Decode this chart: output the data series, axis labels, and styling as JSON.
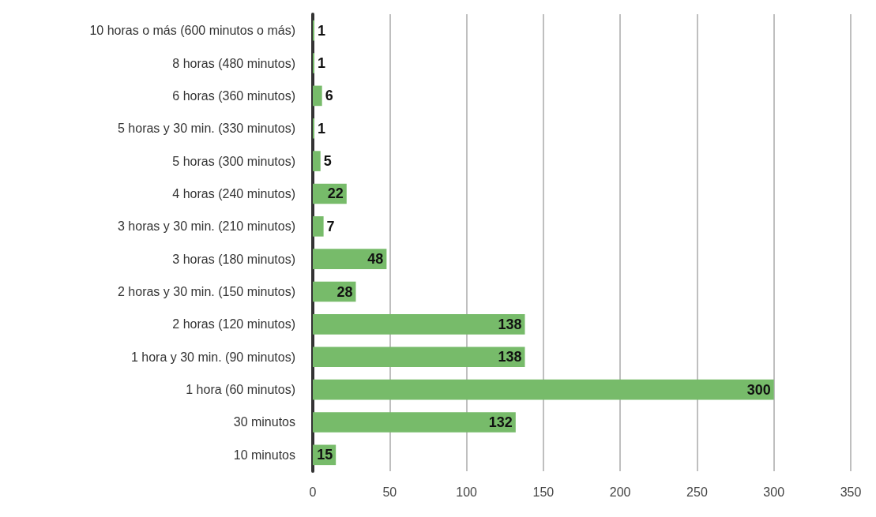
{
  "chart_data": {
    "type": "bar",
    "orientation": "horizontal",
    "categories": [
      "10 horas o más (600 minutos o más)",
      "8 horas (480 minutos)",
      "6 horas (360 minutos)",
      "5 horas y 30 min. (330 minutos)",
      "5 horas (300 minutos)",
      "4 horas (240 minutos)",
      "3 horas y 30 min. (210 minutos)",
      "3 horas (180 minutos)",
      "2 horas y 30 min. (150 minutos)",
      "2 horas (120 minutos)",
      "1 hora y 30 min. (90 minutos)",
      "1 hora (60 minutos)",
      "30 minutos",
      "10 minutos"
    ],
    "values": [
      1,
      1,
      6,
      1,
      5,
      22,
      7,
      48,
      28,
      138,
      138,
      300,
      132,
      15
    ],
    "color": "#77bb6a",
    "xlim": [
      0,
      350
    ],
    "xticks": [
      0,
      50,
      100,
      150,
      200,
      250,
      300,
      350
    ],
    "grid": "x",
    "data_labels": true
  }
}
